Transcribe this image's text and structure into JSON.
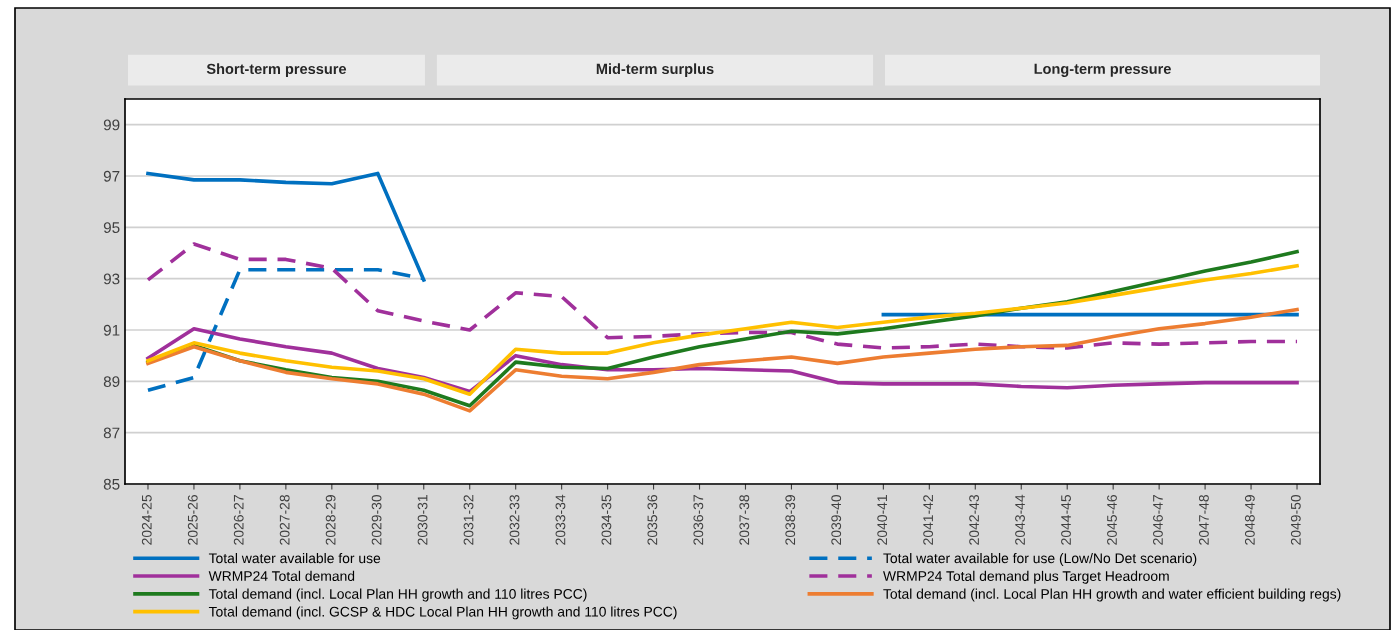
{
  "chart_data": {
    "type": "line",
    "categories": [
      "2024-25",
      "2025-26",
      "2026-27",
      "2027-28",
      "2028-29",
      "2029-30",
      "2030-31",
      "2031-32",
      "2032-33",
      "2033-34",
      "2034-35",
      "2035-36",
      "2036-37",
      "2037-38",
      "2038-39",
      "2039-40",
      "2040-41",
      "2041-42",
      "2042-43",
      "2043-44",
      "2044-45",
      "2045-46",
      "2046-47",
      "2047-48",
      "2048-49",
      "2049-50"
    ],
    "series": [
      {
        "name": "Total water available for use",
        "color": "#0070c0",
        "values": [
          97.1,
          96.85,
          96.85,
          96.75,
          96.7,
          97.1,
          92.95,
          null,
          null,
          null,
          null,
          null,
          null,
          null,
          null,
          null,
          91.6,
          91.6,
          91.6,
          91.6,
          91.6,
          91.6,
          91.6,
          91.6,
          91.6,
          91.6
        ]
      },
      {
        "name": "Total water available for use (Low/No Det scenario)",
        "color": "#0070c0",
        "line_style": "dashed",
        "values": [
          88.65,
          89.15,
          93.35,
          93.35,
          93.35,
          93.35,
          93.0,
          null,
          null,
          null,
          null,
          null,
          null,
          null,
          null,
          null,
          null,
          null,
          null,
          null,
          null,
          null,
          null,
          null,
          null,
          null
        ]
      },
      {
        "name": "WRMP24 Total demand",
        "color": "#a0309b",
        "values": [
          89.9,
          91.05,
          90.65,
          90.35,
          90.1,
          89.5,
          89.15,
          88.6,
          90.0,
          89.65,
          89.45,
          89.45,
          89.5,
          89.45,
          89.4,
          88.95,
          88.9,
          88.9,
          88.9,
          88.8,
          88.75,
          88.85,
          88.9,
          88.95,
          88.95,
          88.95
        ]
      },
      {
        "name": "WRMP24 Total demand plus Target Headroom",
        "color": "#a0309b",
        "line_style": "dashed",
        "values": [
          92.95,
          94.35,
          93.75,
          93.75,
          93.4,
          91.75,
          91.35,
          91.0,
          92.45,
          92.3,
          90.7,
          90.75,
          90.85,
          90.9,
          90.9,
          90.45,
          90.3,
          90.35,
          90.45,
          90.35,
          90.3,
          90.5,
          90.45,
          90.5,
          90.55,
          90.55
        ]
      },
      {
        "name": "Total demand (incl. Local Plan HH growth and 110 litres PCC)",
        "color": "#1e7a1e",
        "values": [
          89.75,
          90.4,
          89.8,
          89.45,
          89.15,
          89.0,
          88.65,
          88.05,
          89.75,
          89.55,
          89.5,
          89.95,
          90.35,
          90.65,
          90.95,
          90.85,
          91.05,
          91.3,
          91.55,
          91.85,
          92.1,
          92.5,
          92.9,
          93.3,
          93.65,
          94.05
        ]
      },
      {
        "name": "Total demand (incl. Local Plan HH growth and water efficient building regs)",
        "color": "#ed7d31",
        "values": [
          89.7,
          90.35,
          89.8,
          89.35,
          89.1,
          88.9,
          88.5,
          87.85,
          89.45,
          89.2,
          89.1,
          89.35,
          89.65,
          89.8,
          89.95,
          89.7,
          89.95,
          90.1,
          90.25,
          90.35,
          90.4,
          90.75,
          91.05,
          91.25,
          91.5,
          91.8
        ]
      },
      {
        "name": "Total demand (incl. GCSP & HDC Local Plan HH growth and 110 litres PCC)",
        "color": "#ffc000",
        "values": [
          89.8,
          90.5,
          90.1,
          89.8,
          89.55,
          89.4,
          89.1,
          88.5,
          90.25,
          90.1,
          90.1,
          90.5,
          90.8,
          91.05,
          91.3,
          91.1,
          91.3,
          91.5,
          91.65,
          91.85,
          92.05,
          92.35,
          92.65,
          92.95,
          93.2,
          93.5
        ]
      }
    ],
    "ylim": [
      85,
      100
    ],
    "yticks": [
      85,
      87,
      89,
      91,
      93,
      95,
      97,
      99
    ],
    "grid": "y",
    "legend": "bottom",
    "annotations": [
      "Short-term pressure",
      "Mid-term surplus",
      "Long-term pressure"
    ]
  }
}
